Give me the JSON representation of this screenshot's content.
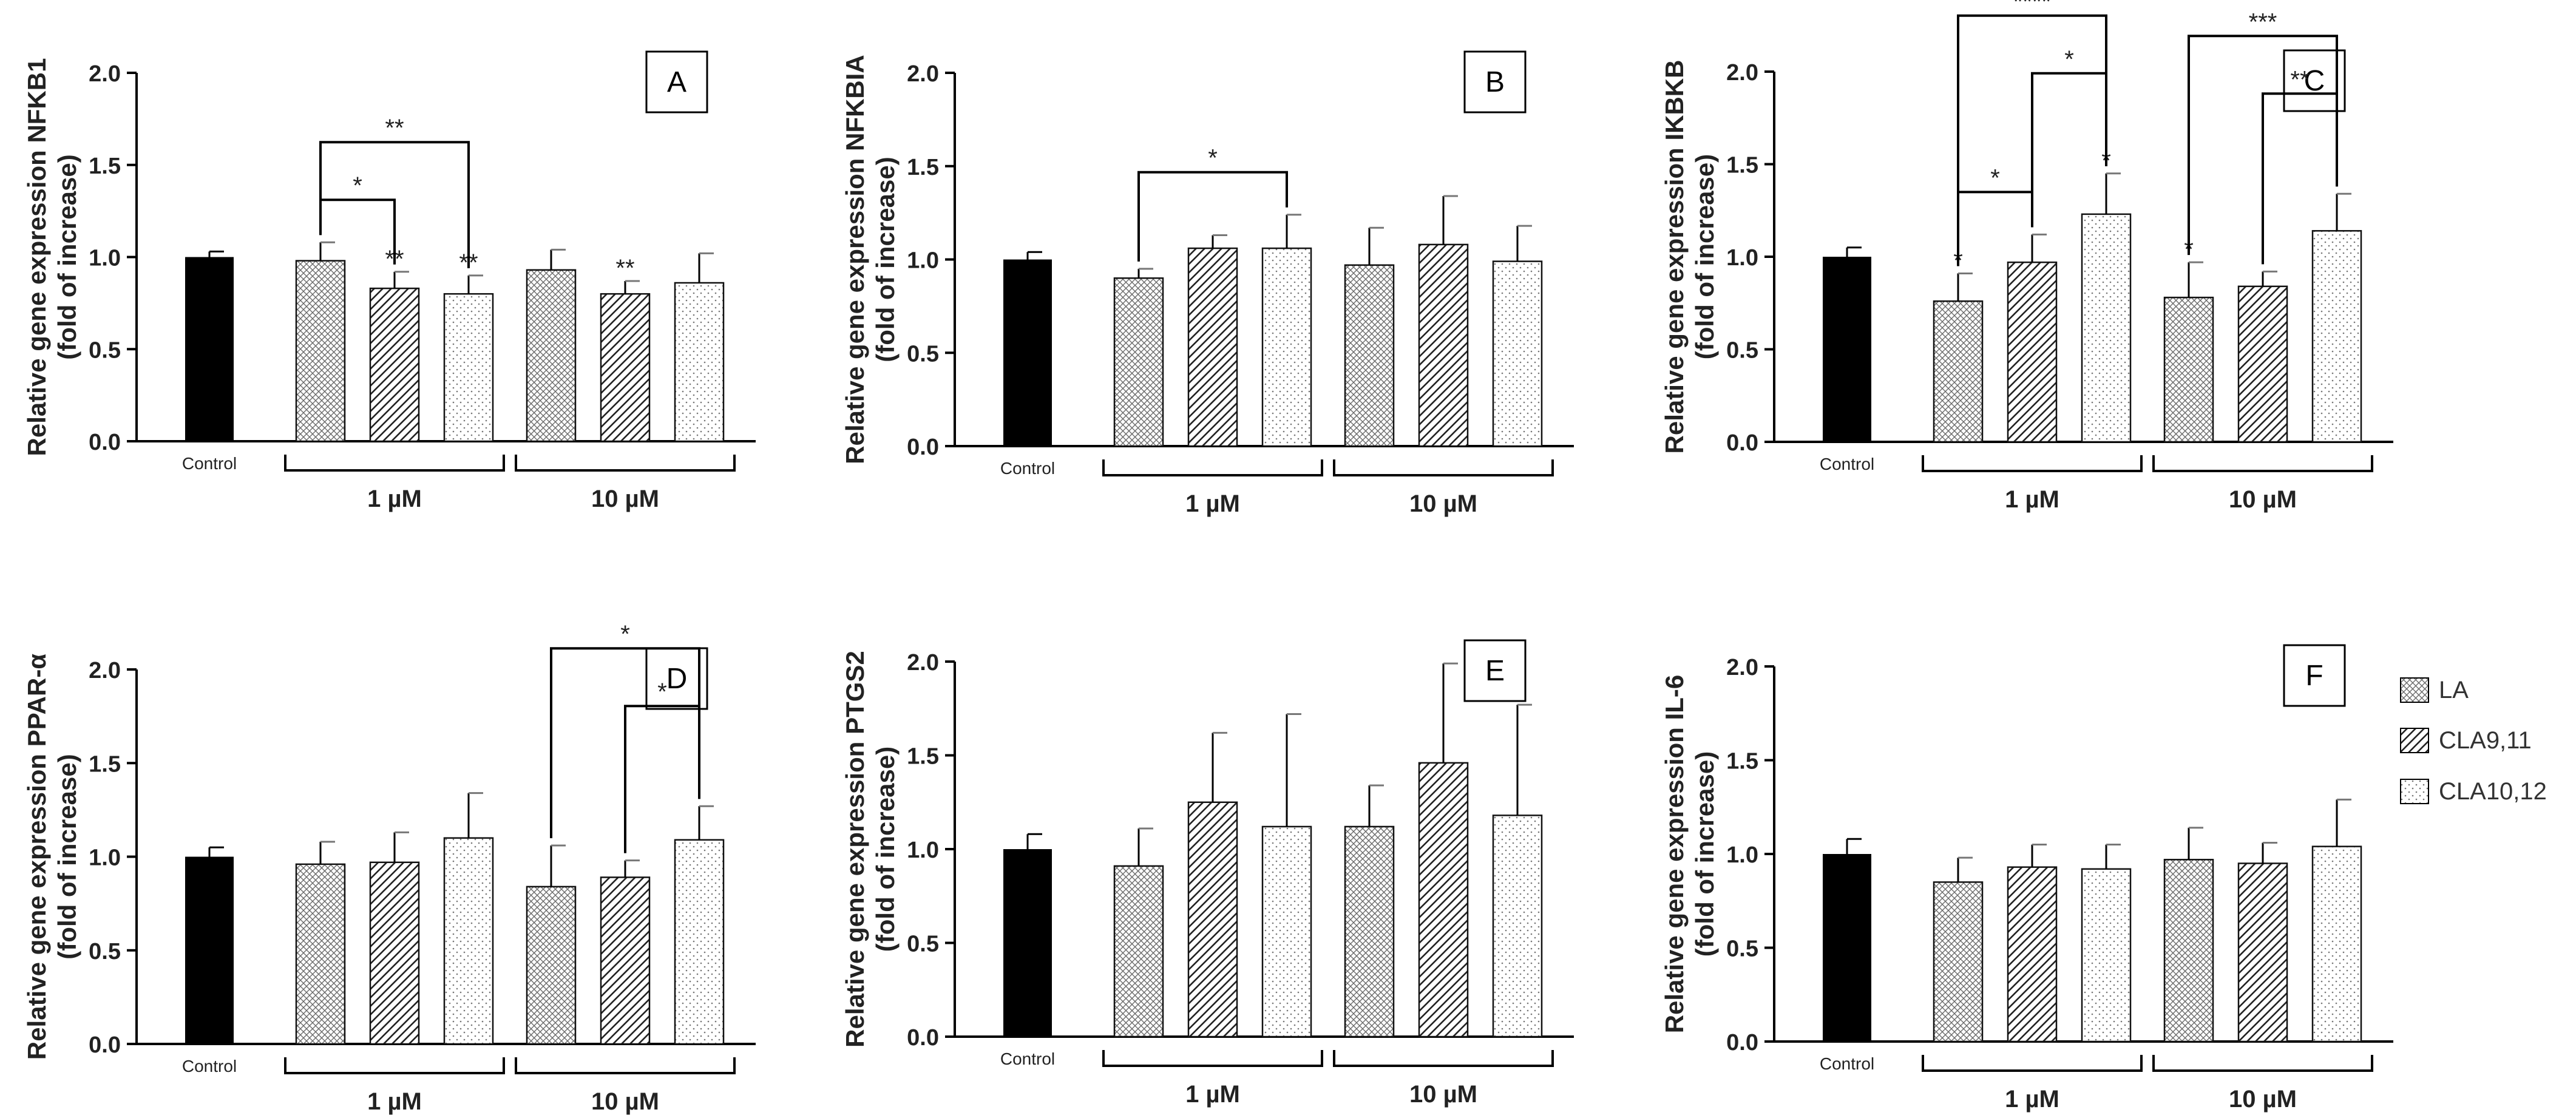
{
  "figure": {
    "legend": {
      "position": "right",
      "entries": [
        {
          "name": "LA",
          "pattern": "crosshatch"
        },
        {
          "name": "CLA9,11",
          "pattern": "diagonal"
        },
        {
          "name": "CLA10,12",
          "pattern": "dots"
        }
      ]
    },
    "colors": {
      "control_fill": "#000000",
      "axis": "#000000",
      "background": "#ffffff"
    }
  },
  "chart_data": [
    {
      "type": "bar",
      "panel": "A",
      "ylabel": [
        "Relative gene expression NFKB1",
        "(fold of increase)"
      ],
      "ylim": [
        0,
        2.0
      ],
      "yticks": [
        "0.0",
        "0.5",
        "1.0",
        "1.5",
        "2.0"
      ],
      "control_label": "Control",
      "groups": [
        "1 µM",
        "10 µM"
      ],
      "series_names": [
        "LA",
        "CLA9,11",
        "CLA10,12"
      ],
      "control": {
        "value": 1.0,
        "error": 0.03
      },
      "values": [
        [
          0.98,
          0.83,
          0.8
        ],
        [
          0.93,
          0.8,
          0.86
        ]
      ],
      "errors": [
        [
          0.1,
          0.09,
          0.1
        ],
        [
          0.11,
          0.07,
          0.16
        ]
      ],
      "bar_labels": [
        [
          "",
          "**",
          "**"
        ],
        [
          "",
          "**",
          ""
        ]
      ],
      "comparisons": [
        {
          "group": 0,
          "from": 0,
          "to": 1,
          "label": "*",
          "level": 0
        },
        {
          "group": 0,
          "from": 0,
          "to": 2,
          "label": "**",
          "level": 1
        }
      ]
    },
    {
      "type": "bar",
      "panel": "B",
      "ylabel": [
        "Relative gene expression NFKBIA",
        "(fold of increase)"
      ],
      "ylim": [
        0,
        2.0
      ],
      "yticks": [
        "0.0",
        "0.5",
        "1.0",
        "1.5",
        "2.0"
      ],
      "control_label": "Control",
      "groups": [
        "1 µM",
        "10 µM"
      ],
      "series_names": [
        "LA",
        "CLA9,11",
        "CLA10,12"
      ],
      "control": {
        "value": 1.0,
        "error": 0.04
      },
      "values": [
        [
          0.9,
          1.06,
          1.06
        ],
        [
          0.97,
          1.08,
          0.99
        ]
      ],
      "errors": [
        [
          0.05,
          0.07,
          0.18
        ],
        [
          0.2,
          0.26,
          0.19
        ]
      ],
      "bar_labels": [
        [
          "",
          "",
          ""
        ],
        [
          "",
          "",
          ""
        ]
      ],
      "comparisons": [
        {
          "group": 0,
          "from": 0,
          "to": 2,
          "label": "*",
          "level": 0
        }
      ]
    },
    {
      "type": "bar",
      "panel": "C",
      "ylabel": [
        "Relative gene expression IKBKB",
        "(fold of increase)"
      ],
      "ylim": [
        0,
        2.0
      ],
      "yticks": [
        "0.0",
        "0.5",
        "1.0",
        "1.5",
        "2.0"
      ],
      "control_label": "Control",
      "groups": [
        "1 µM",
        "10 µM"
      ],
      "series_names": [
        "LA",
        "CLA9,11",
        "CLA10,12"
      ],
      "control": {
        "value": 1.0,
        "error": 0.05
      },
      "values": [
        [
          0.76,
          0.97,
          1.23
        ],
        [
          0.78,
          0.84,
          1.14
        ]
      ],
      "errors": [
        [
          0.15,
          0.15,
          0.22
        ],
        [
          0.19,
          0.08,
          0.2
        ]
      ],
      "bar_labels": [
        [
          "*",
          "",
          "*"
        ],
        [
          "*",
          "",
          ""
        ]
      ],
      "comparisons": [
        {
          "group": 0,
          "from": 0,
          "to": 1,
          "label": "*",
          "level": 0
        },
        {
          "group": 0,
          "from": 1,
          "to": 2,
          "label": "*",
          "level": 1
        },
        {
          "group": 0,
          "from": 0,
          "to": 2,
          "label": "****",
          "level": 2
        },
        {
          "group": 1,
          "from": 1,
          "to": 2,
          "label": "**",
          "level": 1
        },
        {
          "group": 1,
          "from": 0,
          "to": 2,
          "label": "***",
          "level": 2
        }
      ]
    },
    {
      "type": "bar",
      "panel": "D",
      "ylabel": [
        "Relative gene expression PPAR-α",
        "(fold of increase)"
      ],
      "ylim": [
        0,
        2.0
      ],
      "yticks": [
        "0.0",
        "0.5",
        "1.0",
        "1.5",
        "2.0"
      ],
      "control_label": "Control",
      "groups": [
        "1 µM",
        "10 µM"
      ],
      "series_names": [
        "LA",
        "CLA9,11",
        "CLA10,12"
      ],
      "control": {
        "value": 1.0,
        "error": 0.05
      },
      "values": [
        [
          0.96,
          0.97,
          1.1
        ],
        [
          0.84,
          0.89,
          1.09
        ]
      ],
      "errors": [
        [
          0.12,
          0.16,
          0.24
        ],
        [
          0.22,
          0.09,
          0.18
        ]
      ],
      "bar_labels": [
        [
          "",
          "",
          ""
        ],
        [
          "",
          "",
          ""
        ]
      ],
      "comparisons": [
        {
          "group": 1,
          "from": 1,
          "to": 2,
          "label": "*",
          "level": 1
        },
        {
          "group": 1,
          "from": 0,
          "to": 2,
          "label": "*",
          "level": 2
        }
      ]
    },
    {
      "type": "bar",
      "panel": "E",
      "ylabel": [
        "Relative gene expression PTGS2",
        "(fold of increase)"
      ],
      "ylim": [
        0,
        2.0
      ],
      "yticks": [
        "0.0",
        "0.5",
        "1.0",
        "1.5",
        "2.0"
      ],
      "control_label": "Control",
      "groups": [
        "1 µM",
        "10 µM"
      ],
      "series_names": [
        "LA",
        "CLA9,11",
        "CLA10,12"
      ],
      "control": {
        "value": 1.0,
        "error": 0.08
      },
      "values": [
        [
          0.91,
          1.25,
          1.12
        ],
        [
          1.12,
          1.46,
          1.18
        ]
      ],
      "errors": [
        [
          0.2,
          0.37,
          0.6
        ],
        [
          0.22,
          0.53,
          0.59
        ]
      ],
      "bar_labels": [
        [
          "",
          "",
          ""
        ],
        [
          "",
          "",
          ""
        ]
      ],
      "comparisons": []
    },
    {
      "type": "bar",
      "panel": "F",
      "ylabel": [
        "Relative gene expression IL-6",
        "(fold of increase)"
      ],
      "ylim": [
        0,
        2.0
      ],
      "yticks": [
        "0.0",
        "0.5",
        "1.0",
        "1.5",
        "2.0"
      ],
      "control_label": "Control",
      "groups": [
        "1 µM",
        "10 µM"
      ],
      "series_names": [
        "LA",
        "CLA9,11",
        "CLA10,12"
      ],
      "control": {
        "value": 1.0,
        "error": 0.08
      },
      "values": [
        [
          0.85,
          0.93,
          0.92
        ],
        [
          0.97,
          0.95,
          1.04
        ]
      ],
      "errors": [
        [
          0.13,
          0.12,
          0.13
        ],
        [
          0.17,
          0.11,
          0.25
        ]
      ],
      "bar_labels": [
        [
          "",
          "",
          ""
        ],
        [
          "",
          "",
          ""
        ]
      ],
      "comparisons": []
    }
  ]
}
